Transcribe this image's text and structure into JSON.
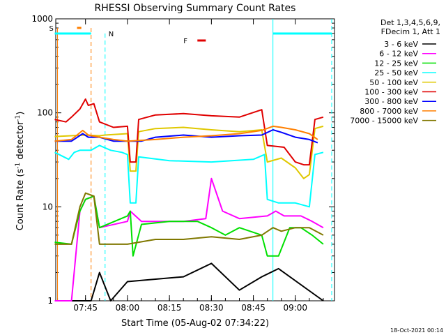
{
  "chart_data": {
    "type": "line",
    "title": "RHESSI Observing Summary Count Rates",
    "xlabel": "Start Time (05-Aug-02 07:34:22)",
    "ylabel": "Count Rate (s",
    "ylabel_sup1": "-1",
    "ylabel_mid": " detector",
    "ylabel_sup2": "-1",
    "ylabel_end": ")",
    "y_scale": "log",
    "ylim": [
      1,
      1000
    ],
    "y_ticks": [
      1,
      10,
      100,
      1000
    ],
    "y_tick_labels": [
      "1",
      "10",
      "100",
      "1000"
    ],
    "xlim": [
      "07:34:22",
      "09:14:00"
    ],
    "x_ticks": [
      "07:45",
      "08:00",
      "08:15",
      "08:30",
      "08:45",
      "09:00"
    ],
    "timestamp": "18-Oct-2021 00:14",
    "legend_header": [
      "Det 1,3,4,5,6,9,",
      "FDecim 1, Att 1"
    ],
    "legend_position": "right",
    "series": [
      {
        "name": "3 - 6 keV",
        "color": "#000000",
        "points": [
          [
            "07:34",
            1
          ],
          [
            "07:47",
            1
          ],
          [
            "07:50",
            2
          ],
          [
            "07:54",
            1
          ],
          [
            "08:00",
            1.6
          ],
          [
            "08:20",
            1.8
          ],
          [
            "08:30",
            2.5
          ],
          [
            "08:40",
            1.3
          ],
          [
            "08:48",
            1.8
          ],
          [
            "08:54",
            2.2
          ],
          [
            "09:10",
            1
          ]
        ]
      },
      {
        "name": "6 - 12 keV",
        "color": "#ff00ff",
        "points": [
          [
            "07:34",
            1
          ],
          [
            "07:40",
            1
          ],
          [
            "07:43",
            9
          ],
          [
            "07:45",
            12
          ],
          [
            "07:48",
            13
          ],
          [
            "07:50",
            6
          ],
          [
            "08:00",
            7
          ],
          [
            "08:01",
            9
          ],
          [
            "08:05",
            7
          ],
          [
            "08:20",
            7
          ],
          [
            "08:28",
            7.5
          ],
          [
            "08:30",
            20
          ],
          [
            "08:34",
            9
          ],
          [
            "08:40",
            7.5
          ],
          [
            "08:50",
            8
          ],
          [
            "08:53",
            9
          ],
          [
            "08:56",
            8
          ],
          [
            "09:02",
            8
          ],
          [
            "09:06",
            7
          ],
          [
            "09:10",
            6
          ]
        ]
      },
      {
        "name": "12 - 25 keV",
        "color": "#00e000",
        "points": [
          [
            "07:34",
            4.2
          ],
          [
            "07:40",
            4
          ],
          [
            "07:43",
            9
          ],
          [
            "07:45",
            12
          ],
          [
            "07:48",
            13
          ],
          [
            "07:50",
            6
          ],
          [
            "08:00",
            8
          ],
          [
            "08:01",
            9
          ],
          [
            "08:02",
            3
          ],
          [
            "08:05",
            6.5
          ],
          [
            "08:15",
            7
          ],
          [
            "08:25",
            7
          ],
          [
            "08:30",
            6
          ],
          [
            "08:35",
            5
          ],
          [
            "08:40",
            6
          ],
          [
            "08:48",
            5
          ],
          [
            "08:50",
            3
          ],
          [
            "08:54",
            3
          ],
          [
            "08:58",
            6
          ],
          [
            "09:02",
            6
          ],
          [
            "09:06",
            5
          ],
          [
            "09:10",
            4
          ]
        ]
      },
      {
        "name": "25 - 50 keV",
        "color": "#00ffff",
        "points": [
          [
            "07:34",
            38
          ],
          [
            "07:39",
            32
          ],
          [
            "07:41",
            38
          ],
          [
            "07:43",
            40
          ],
          [
            "07:47",
            40
          ],
          [
            "07:50",
            45
          ],
          [
            "07:54",
            40
          ],
          [
            "07:58",
            38
          ],
          [
            "08:00",
            36
          ],
          [
            "08:01",
            11
          ],
          [
            "08:03",
            11
          ],
          [
            "08:04",
            34
          ],
          [
            "08:15",
            31
          ],
          [
            "08:30",
            30
          ],
          [
            "08:45",
            32
          ],
          [
            "08:49",
            36
          ],
          [
            "08:50",
            12
          ],
          [
            "08:54",
            11
          ],
          [
            "09:00",
            11
          ],
          [
            "09:05",
            10
          ],
          [
            "09:07",
            36
          ],
          [
            "09:10",
            38
          ]
        ]
      },
      {
        "name": "50 - 100 keV",
        "color": "#e0c800",
        "points": [
          [
            "07:34",
            56
          ],
          [
            "07:45",
            58
          ],
          [
            "07:50",
            57
          ],
          [
            "07:52",
            58
          ],
          [
            "08:00",
            60
          ],
          [
            "08:01",
            24
          ],
          [
            "08:03",
            24
          ],
          [
            "08:04",
            63
          ],
          [
            "08:10",
            68
          ],
          [
            "08:20",
            70
          ],
          [
            "08:30",
            66
          ],
          [
            "08:40",
            63
          ],
          [
            "08:48",
            66
          ],
          [
            "08:50",
            30
          ],
          [
            "08:55",
            33
          ],
          [
            "09:00",
            26
          ],
          [
            "09:03",
            20
          ],
          [
            "09:05",
            22
          ],
          [
            "09:07",
            68
          ],
          [
            "09:10",
            72
          ]
        ]
      },
      {
        "name": "100 - 300 keV",
        "color": "#e00000",
        "points": [
          [
            "07:34",
            85
          ],
          [
            "07:38",
            80
          ],
          [
            "07:40",
            90
          ],
          [
            "07:43",
            110
          ],
          [
            "07:45",
            140
          ],
          [
            "07:46",
            120
          ],
          [
            "07:48",
            125
          ],
          [
            "07:50",
            80
          ],
          [
            "07:55",
            70
          ],
          [
            "08:00",
            72
          ],
          [
            "08:01",
            30
          ],
          [
            "08:03",
            30
          ],
          [
            "08:04",
            85
          ],
          [
            "08:10",
            95
          ],
          [
            "08:20",
            98
          ],
          [
            "08:30",
            93
          ],
          [
            "08:40",
            90
          ],
          [
            "08:48",
            108
          ],
          [
            "08:50",
            45
          ],
          [
            "08:56",
            43
          ],
          [
            "09:00",
            30
          ],
          [
            "09:03",
            28
          ],
          [
            "09:05",
            28
          ],
          [
            "09:07",
            85
          ],
          [
            "09:10",
            90
          ]
        ]
      },
      {
        "name": "300 - 800 keV",
        "color": "#0000ff",
        "points": [
          [
            "07:34",
            50
          ],
          [
            "07:40",
            50
          ],
          [
            "07:44",
            60
          ],
          [
            "07:46",
            55
          ],
          [
            "07:50",
            55
          ],
          [
            "07:55",
            50
          ],
          [
            "08:00",
            50
          ],
          [
            "08:05",
            50
          ],
          [
            "08:10",
            55
          ],
          [
            "08:20",
            58
          ],
          [
            "08:30",
            55
          ],
          [
            "08:40",
            57
          ],
          [
            "08:48",
            58
          ],
          [
            "08:52",
            66
          ],
          [
            "08:55",
            62
          ],
          [
            "09:00",
            55
          ],
          [
            "09:05",
            52
          ],
          [
            "09:08",
            48
          ]
        ]
      },
      {
        "name": "800 - 7000 keV",
        "color": "#ff7f00",
        "points": [
          [
            "07:34",
            50
          ],
          [
            "07:40",
            52
          ],
          [
            "07:44",
            65
          ],
          [
            "07:46",
            58
          ],
          [
            "07:50",
            55
          ],
          [
            "07:55",
            52
          ],
          [
            "08:00",
            50
          ],
          [
            "08:10",
            52
          ],
          [
            "08:20",
            55
          ],
          [
            "08:30",
            57
          ],
          [
            "08:40",
            60
          ],
          [
            "08:48",
            65
          ],
          [
            "08:52",
            72
          ],
          [
            "08:55",
            70
          ],
          [
            "09:00",
            66
          ],
          [
            "09:05",
            60
          ],
          [
            "09:08",
            52
          ]
        ]
      },
      {
        "name": "7000 - 15000 keV",
        "color": "#807800",
        "points": [
          [
            "07:34",
            4
          ],
          [
            "07:40",
            4
          ],
          [
            "07:43",
            10
          ],
          [
            "07:45",
            14
          ],
          [
            "07:48",
            13
          ],
          [
            "07:50",
            4
          ],
          [
            "08:00",
            4
          ],
          [
            "08:10",
            4.5
          ],
          [
            "08:20",
            4.5
          ],
          [
            "08:30",
            4.8
          ],
          [
            "08:40",
            4.5
          ],
          [
            "08:48",
            5
          ],
          [
            "08:52",
            6
          ],
          [
            "08:55",
            5.5
          ],
          [
            "09:00",
            6
          ],
          [
            "09:05",
            6
          ],
          [
            "09:10",
            5
          ]
        ]
      }
    ],
    "annotations": {
      "saa": {
        "label": "S",
        "color": "#ff7f00",
        "start": "07:35",
        "end": "07:47"
      },
      "night": {
        "label": "N",
        "color": "#00ffff",
        "start_bar": "07:34",
        "end_bar": "07:52",
        "start2": "08:52",
        "end2": "09:13"
      },
      "flare": {
        "label": "F",
        "color": "#e00000",
        "start": "08:25",
        "end": "08:28"
      }
    }
  }
}
